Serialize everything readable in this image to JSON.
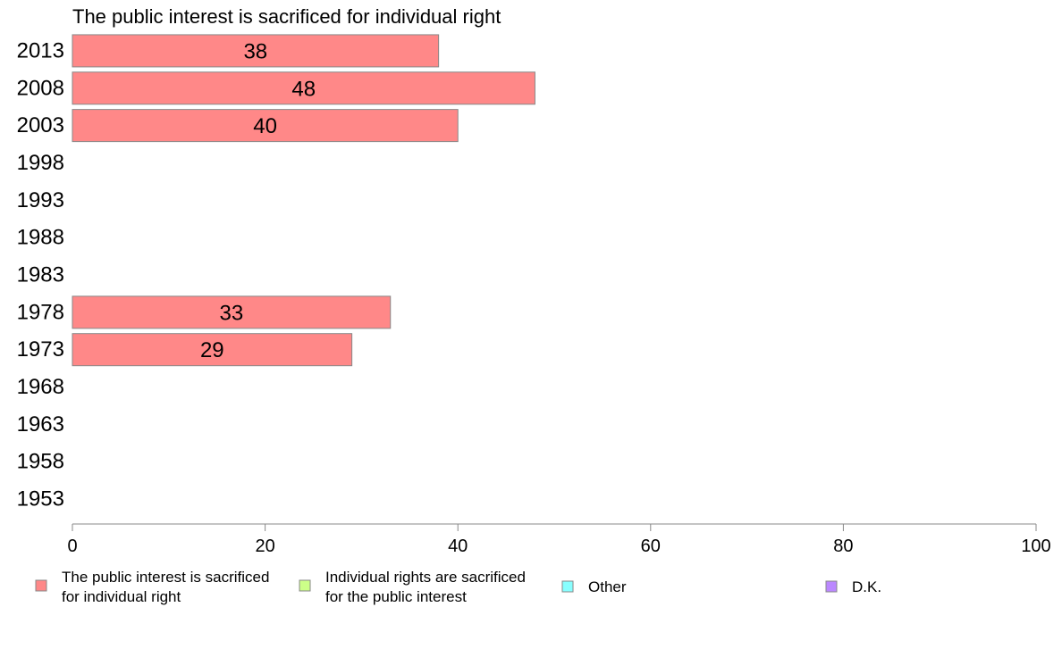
{
  "chart_data": {
    "type": "bar",
    "orientation": "horizontal",
    "title": "The public interest is sacrificed for individual right",
    "categories": [
      "2013",
      "2008",
      "2003",
      "1998",
      "1993",
      "1988",
      "1983",
      "1978",
      "1973",
      "1968",
      "1963",
      "1958",
      "1953"
    ],
    "series": [
      {
        "name": "The public interest is sacrificed for individual right",
        "color": "#ff8888",
        "values": [
          38,
          48,
          40,
          null,
          null,
          null,
          null,
          33,
          29,
          null,
          null,
          null,
          null
        ]
      }
    ],
    "xlim": [
      0,
      100
    ],
    "xticks": [
      0,
      20,
      40,
      60,
      80,
      100
    ],
    "xlabel": "",
    "ylabel": "",
    "grid": false,
    "legend_position": "bottom",
    "legend": [
      {
        "lines": [
          "The public interest is sacrificed",
          "for individual right"
        ],
        "color": "#ff8888"
      },
      {
        "lines": [
          "Individual rights are sacrificed",
          "for the public interest"
        ],
        "color": "#ccff88"
      },
      {
        "lines": [
          "Other"
        ],
        "color": "#88ffff"
      },
      {
        "lines": [
          "D.K."
        ],
        "color": "#bb88ff"
      }
    ]
  }
}
